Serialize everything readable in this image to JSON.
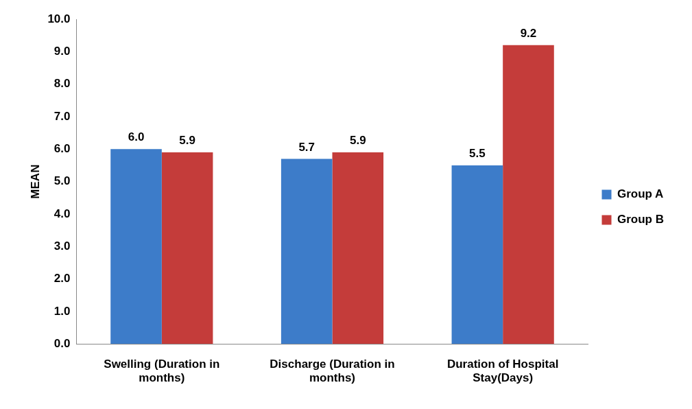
{
  "chart_data": {
    "type": "bar",
    "ylabel": "MEAN",
    "categories": [
      "Swelling (Duration in months)",
      "Discharge (Duration in months)",
      "Duration of Hospital Stay(Days)"
    ],
    "series": [
      {
        "name": "Group A",
        "color": "#3d7cc9",
        "values": [
          6.0,
          5.7,
          5.5
        ],
        "value_labels": [
          "6.0",
          "5.7",
          "5.5"
        ]
      },
      {
        "name": "Group B",
        "color": "#c43c3a",
        "values": [
          5.9,
          5.9,
          9.2
        ],
        "value_labels": [
          "5.9",
          "5.9",
          "9.2"
        ]
      }
    ],
    "ylim": [
      0,
      10
    ],
    "yticks": [
      {
        "value": 0,
        "label": "0.0"
      },
      {
        "value": 1,
        "label": "1.0"
      },
      {
        "value": 2,
        "label": "2.0"
      },
      {
        "value": 3,
        "label": "3.0"
      },
      {
        "value": 4,
        "label": "4.0"
      },
      {
        "value": 5,
        "label": "5.0"
      },
      {
        "value": 6,
        "label": "6.0"
      },
      {
        "value": 7,
        "label": "7.0"
      },
      {
        "value": 8,
        "label": "8.0"
      },
      {
        "value": 9,
        "label": "9.0"
      },
      {
        "value": 10,
        "label": "10.0"
      }
    ],
    "grid": false,
    "legend": "right"
  }
}
